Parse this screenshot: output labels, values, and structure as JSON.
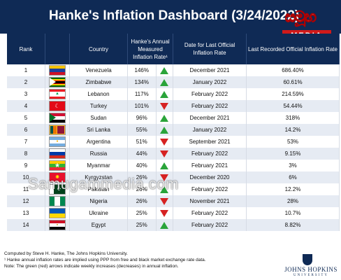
{
  "title": "Hanke's Inflation Dashboard (3/24/2022)",
  "watermark": "Samugammedia.com",
  "logo": {
    "script_text": "සමූහ",
    "media_text": "MEDIA"
  },
  "columns": {
    "rank": "Rank",
    "country": "Country",
    "hanke": "Hanke's Annual Measured Inflation Rate¹",
    "date": "Date for Last Official Inflation Rate",
    "official": "Last Recorded Official Inflation Rate"
  },
  "colors": {
    "header_bg": "#0f2a55",
    "up": "#2aa43a",
    "down": "#d62222",
    "row_alt": "#e6ebf3"
  },
  "rows": [
    {
      "rank": "1",
      "country": "Venezuela",
      "flag": "venezuela-flag-icon",
      "hanke": "146%",
      "dir": "up",
      "date": "December 2021",
      "official": "686.40%"
    },
    {
      "rank": "2",
      "country": "Zimbabwe",
      "flag": "zimbabwe-flag-icon",
      "hanke": "134%",
      "dir": "up",
      "date": "January 2022",
      "official": "60.61%"
    },
    {
      "rank": "3",
      "country": "Lebanon",
      "flag": "lebanon-flag-icon",
      "hanke": "117%",
      "dir": "up",
      "date": "February 2022",
      "official": "214.59%"
    },
    {
      "rank": "4",
      "country": "Turkey",
      "flag": "turkey-flag-icon",
      "hanke": "101%",
      "dir": "down",
      "date": "February 2022",
      "official": "54.44%"
    },
    {
      "rank": "5",
      "country": "Sudan",
      "flag": "sudan-flag-icon",
      "hanke": "96%",
      "dir": "up",
      "date": "December 2021",
      "official": "318%"
    },
    {
      "rank": "6",
      "country": "Sri Lanka",
      "flag": "sri-lanka-flag-icon",
      "hanke": "55%",
      "dir": "up",
      "date": "January 2022",
      "official": "14.2%"
    },
    {
      "rank": "7",
      "country": "Argentina",
      "flag": "argentina-flag-icon",
      "hanke": "51%",
      "dir": "down",
      "date": "September 2021",
      "official": "53%"
    },
    {
      "rank": "8",
      "country": "Russia",
      "flag": "russia-flag-icon",
      "hanke": "44%",
      "dir": "down",
      "date": "February 2022",
      "official": "9.15%"
    },
    {
      "rank": "9",
      "country": "Myanmar",
      "flag": "myanmar-flag-icon",
      "hanke": "40%",
      "dir": "up",
      "date": "February 2021",
      "official": "3%"
    },
    {
      "rank": "10",
      "country": "Kyrgyzstan",
      "flag": "kyrgyzstan-flag-icon",
      "hanke": "26%",
      "dir": "down",
      "date": "December 2020",
      "official": "6%"
    },
    {
      "rank": "11",
      "country": "Pakistan",
      "flag": "pakistan-flag-icon",
      "hanke": "26%",
      "dir": "up",
      "date": "February 2022",
      "official": "12.2%"
    },
    {
      "rank": "12",
      "country": "Nigeria",
      "flag": "nigeria-flag-icon",
      "hanke": "26%",
      "dir": "down",
      "date": "November 2021",
      "official": "28%"
    },
    {
      "rank": "13",
      "country": "Ukraine",
      "flag": "ukraine-flag-icon",
      "hanke": "25%",
      "dir": "down",
      "date": "February 2022",
      "official": "10.7%"
    },
    {
      "rank": "14",
      "country": "Egypt",
      "flag": "egypt-flag-icon",
      "hanke": "25%",
      "dir": "up",
      "date": "February 2022",
      "official": "8.82%"
    }
  ],
  "notes": {
    "line1": "Computed by Steve H. Hanke, The Johns Hopkins University.",
    "line2": "¹ Hanke annual inflation rates are implied using PPP from free and black market exchange rate data.",
    "line3": "Note: The green (red) arrows indicate weekly increases (decreases) in annual inflation."
  },
  "jhu": {
    "name": "JOHNS HOPKINS",
    "sub": "UNIVERSITY"
  }
}
